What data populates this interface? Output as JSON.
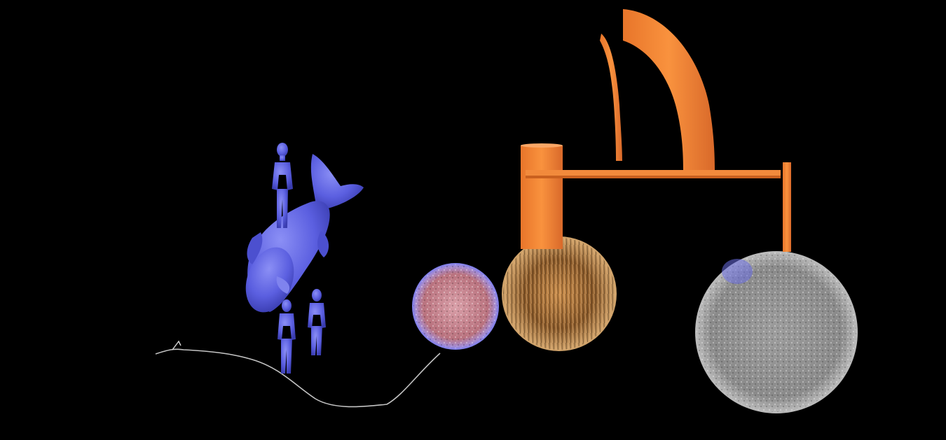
{
  "scene": {
    "background_color": "#000000",
    "objects": [
      {
        "name": "whale-figure",
        "color": "#5b5fe0"
      },
      {
        "name": "human-figure-standing-on-whale",
        "color": "#5b5fe0"
      },
      {
        "name": "human-figure-small-left",
        "color": "#5b5fe0"
      },
      {
        "name": "human-figure-small-right",
        "color": "#5b5fe0"
      },
      {
        "name": "wavy-thread-line",
        "color": "#cfcfcf"
      },
      {
        "name": "pink-textured-sphere",
        "color": "#c98a9a"
      },
      {
        "name": "fur-textured-sphere",
        "color": "#b8742e"
      },
      {
        "name": "gray-textured-sphere",
        "color": "#a8a8a8"
      },
      {
        "name": "orange-frame-structure",
        "color": "#f48638"
      },
      {
        "name": "orange-tall-arch",
        "color": "#f48638"
      },
      {
        "name": "orange-thin-arch",
        "color": "#f48638"
      }
    ]
  }
}
